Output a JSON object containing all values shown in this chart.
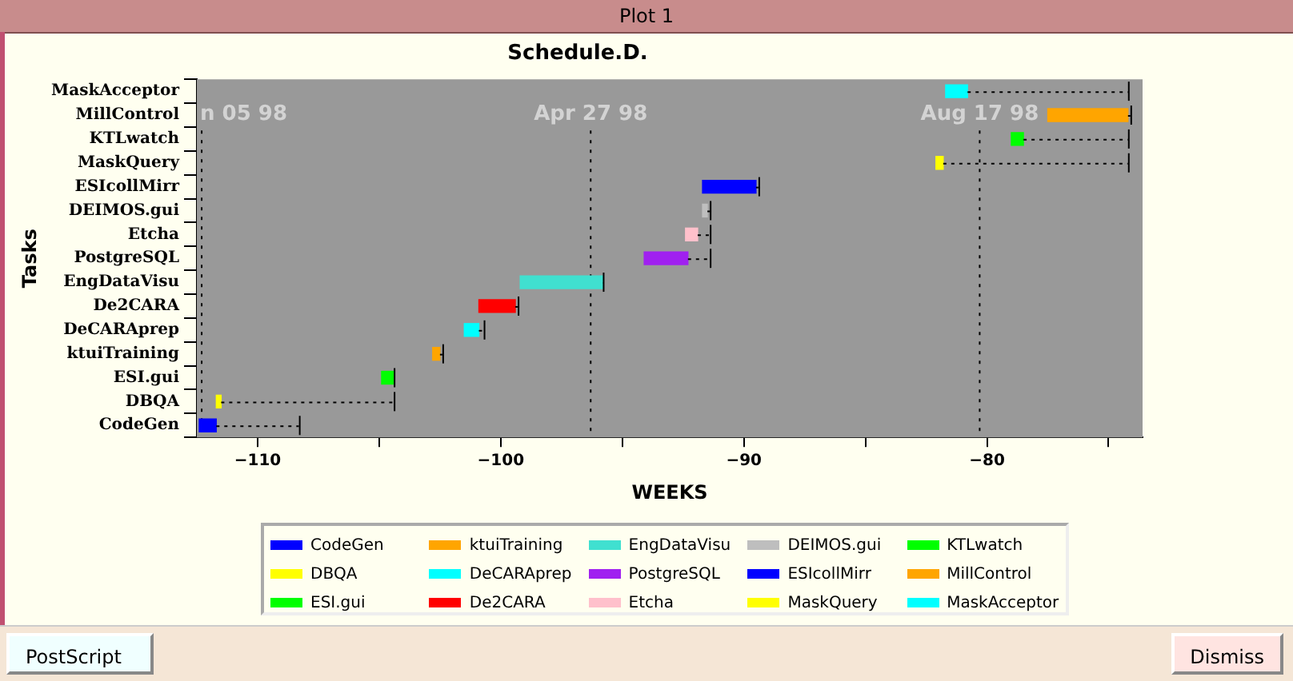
{
  "chart_data": {
    "type": "bar",
    "orientation": "horizontal",
    "title": "Schedule.D.",
    "xlabel": "WEEKS",
    "ylabel": "Tasks",
    "legend": "bottom",
    "grid": false,
    "categories": [
      "MaskAcceptor",
      "MillControl",
      "KTLwatch",
      "MaskQuery",
      "ESIcollMirr",
      "DEIMOS.gui",
      "Etcha",
      "PostgreSQL",
      "EngDataVisu",
      "De2CARA",
      "DeCARAprep",
      "ktuiTraining",
      "ESI.gui",
      "DBQA",
      "CodeGen"
    ],
    "xlim": [
      -112.5,
      -73.6
    ],
    "xticks": [
      -110,
      {
        "value": -105,
        "label": null
      },
      -100,
      {
        "value": -95,
        "label": null
      },
      -90,
      {
        "value": -85,
        "label": null
      },
      -80,
      {
        "value": -75,
        "label": null
      }
    ],
    "series": [
      {
        "name": "CodeGen",
        "color": "#0000ff",
        "values": [
          null,
          null,
          null,
          null,
          null,
          null,
          null,
          null,
          null,
          null,
          null,
          null,
          null,
          null,
          0.7
        ],
        "base": [
          null,
          null,
          null,
          null,
          null,
          null,
          null,
          null,
          null,
          null,
          null,
          null,
          null,
          null,
          -112.4
        ],
        "errors": [
          null,
          null,
          null,
          null,
          null,
          null,
          null,
          null,
          null,
          null,
          null,
          null,
          null,
          null,
          [
            -111.7,
            -108.3
          ]
        ]
      },
      {
        "name": "DBQA",
        "color": "#ffff00",
        "values": [
          null,
          null,
          null,
          null,
          null,
          null,
          null,
          null,
          null,
          null,
          null,
          null,
          null,
          0.2,
          null
        ],
        "base": [
          null,
          null,
          null,
          null,
          null,
          null,
          null,
          null,
          null,
          null,
          null,
          null,
          null,
          -111.7,
          null
        ],
        "errors": [
          null,
          null,
          null,
          null,
          null,
          null,
          null,
          null,
          null,
          null,
          null,
          null,
          null,
          [
            -111.5,
            -104.4
          ],
          null
        ]
      },
      {
        "name": "ESI.gui",
        "color": "#00ff00",
        "values": [
          null,
          null,
          null,
          null,
          null,
          null,
          null,
          null,
          null,
          null,
          null,
          null,
          0.5,
          null,
          null
        ],
        "base": [
          null,
          null,
          null,
          null,
          null,
          null,
          null,
          null,
          null,
          null,
          null,
          null,
          -104.9,
          null,
          null
        ],
        "errors": [
          null,
          null,
          null,
          null,
          null,
          null,
          null,
          null,
          null,
          null,
          null,
          null,
          [
            -104.4,
            -104.4
          ],
          null,
          null
        ]
      },
      {
        "name": "ktuiTraining",
        "color": "#ffa500",
        "values": [
          null,
          null,
          null,
          null,
          null,
          null,
          null,
          null,
          null,
          null,
          null,
          0.3,
          null,
          null,
          null
        ],
        "base": [
          null,
          null,
          null,
          null,
          null,
          null,
          null,
          null,
          null,
          null,
          null,
          -102.8,
          null,
          null,
          null
        ],
        "errors": [
          null,
          null,
          null,
          null,
          null,
          null,
          null,
          null,
          null,
          null,
          null,
          [
            -102.5,
            -102.4
          ],
          null,
          null,
          null
        ]
      },
      {
        "name": "DeCARAprep",
        "color": "#00ffff",
        "values": [
          null,
          null,
          null,
          null,
          null,
          null,
          null,
          null,
          null,
          null,
          0.6,
          null,
          null,
          null,
          null
        ],
        "base": [
          null,
          null,
          null,
          null,
          null,
          null,
          null,
          null,
          null,
          null,
          -101.5,
          null,
          null,
          null,
          null
        ],
        "errors": [
          null,
          null,
          null,
          null,
          null,
          null,
          null,
          null,
          null,
          null,
          [
            -100.9,
            -100.7
          ],
          null,
          null,
          null,
          null
        ]
      },
      {
        "name": "De2CARA",
        "color": "#ff0000",
        "values": [
          null,
          null,
          null,
          null,
          null,
          null,
          null,
          null,
          null,
          1.5,
          null,
          null,
          null,
          null,
          null
        ],
        "base": [
          null,
          null,
          null,
          null,
          null,
          null,
          null,
          null,
          null,
          -100.9,
          null,
          null,
          null,
          null,
          null
        ],
        "errors": [
          null,
          null,
          null,
          null,
          null,
          null,
          null,
          null,
          null,
          [
            -99.4,
            -99.3
          ],
          null,
          null,
          null,
          null,
          null
        ]
      },
      {
        "name": "EngDataVisu",
        "color": "#40e0d0",
        "values": [
          null,
          null,
          null,
          null,
          null,
          null,
          null,
          null,
          3.4,
          null,
          null,
          null,
          null,
          null,
          null
        ],
        "base": [
          null,
          null,
          null,
          null,
          null,
          null,
          null,
          null,
          -99.2,
          null,
          null,
          null,
          null,
          null,
          null
        ],
        "errors": [
          null,
          null,
          null,
          null,
          null,
          null,
          null,
          null,
          [
            -95.8,
            -95.8
          ],
          null,
          null,
          null,
          null,
          null,
          null
        ]
      },
      {
        "name": "PostgreSQL",
        "color": "#a020f0",
        "values": [
          null,
          null,
          null,
          null,
          null,
          null,
          null,
          1.8,
          null,
          null,
          null,
          null,
          null,
          null,
          null
        ],
        "base": [
          null,
          null,
          null,
          null,
          null,
          null,
          null,
          -94.1,
          null,
          null,
          null,
          null,
          null,
          null,
          null
        ],
        "errors": [
          null,
          null,
          null,
          null,
          null,
          null,
          null,
          [
            -92.3,
            -91.4
          ],
          null,
          null,
          null,
          null,
          null,
          null,
          null
        ]
      },
      {
        "name": "Etcha",
        "color": "#ffc0cb",
        "values": [
          null,
          null,
          null,
          null,
          null,
          null,
          0.5,
          null,
          null,
          null,
          null,
          null,
          null,
          null,
          null
        ],
        "base": [
          null,
          null,
          null,
          null,
          null,
          null,
          -92.4,
          null,
          null,
          null,
          null,
          null,
          null,
          null,
          null
        ],
        "errors": [
          null,
          null,
          null,
          null,
          null,
          null,
          [
            -91.9,
            -91.4
          ],
          null,
          null,
          null,
          null,
          null,
          null,
          null,
          null
        ]
      },
      {
        "name": "DEIMOS.gui",
        "color": "#bebebe",
        "values": [
          null,
          null,
          null,
          null,
          null,
          0.2,
          null,
          null,
          null,
          null,
          null,
          null,
          null,
          null,
          null
        ],
        "base": [
          null,
          null,
          null,
          null,
          null,
          -91.7,
          null,
          null,
          null,
          null,
          null,
          null,
          null,
          null,
          null
        ],
        "errors": [
          null,
          null,
          null,
          null,
          null,
          [
            -91.5,
            -91.4
          ],
          null,
          null,
          null,
          null,
          null,
          null,
          null,
          null,
          null
        ]
      },
      {
        "name": "ESIcollMirr",
        "color": "#0000ff",
        "values": [
          null,
          null,
          null,
          null,
          2.2,
          null,
          null,
          null,
          null,
          null,
          null,
          null,
          null,
          null,
          null
        ],
        "base": [
          null,
          null,
          null,
          null,
          -91.7,
          null,
          null,
          null,
          null,
          null,
          null,
          null,
          null,
          null,
          null
        ],
        "errors": [
          null,
          null,
          null,
          null,
          [
            -89.5,
            -89.4
          ],
          null,
          null,
          null,
          null,
          null,
          null,
          null,
          null,
          null,
          null
        ]
      },
      {
        "name": "MaskQuery",
        "color": "#ffff00",
        "values": [
          null,
          null,
          null,
          0.3,
          null,
          null,
          null,
          null,
          null,
          null,
          null,
          null,
          null,
          null,
          null
        ],
        "base": [
          null,
          null,
          null,
          -82.1,
          null,
          null,
          null,
          null,
          null,
          null,
          null,
          null,
          null,
          null,
          null
        ],
        "errors": [
          null,
          null,
          null,
          [
            -81.8,
            -74.2
          ],
          null,
          null,
          null,
          null,
          null,
          null,
          null,
          null,
          null,
          null,
          null
        ]
      },
      {
        "name": "KTLwatch",
        "color": "#00ff00",
        "values": [
          null,
          null,
          0.5,
          null,
          null,
          null,
          null,
          null,
          null,
          null,
          null,
          null,
          null,
          null,
          null
        ],
        "base": [
          null,
          null,
          -79.0,
          null,
          null,
          null,
          null,
          null,
          null,
          null,
          null,
          null,
          null,
          null,
          null
        ],
        "errors": [
          null,
          null,
          [
            -78.5,
            -74.2
          ],
          null,
          null,
          null,
          null,
          null,
          null,
          null,
          null,
          null,
          null,
          null,
          null
        ]
      },
      {
        "name": "MillControl",
        "color": "#ffa500",
        "values": [
          null,
          3.3,
          null,
          null,
          null,
          null,
          null,
          null,
          null,
          null,
          null,
          null,
          null,
          null,
          null
        ],
        "base": [
          null,
          -77.5,
          null,
          null,
          null,
          null,
          null,
          null,
          null,
          null,
          null,
          null,
          null,
          null,
          null
        ],
        "errors": [
          null,
          [
            -74.2,
            -74.1
          ],
          null,
          null,
          null,
          null,
          null,
          null,
          null,
          null,
          null,
          null,
          null,
          null,
          null
        ]
      },
      {
        "name": "MaskAcceptor",
        "color": "#00ffff",
        "values": [
          0.9,
          null,
          null,
          null,
          null,
          null,
          null,
          null,
          null,
          null,
          null,
          null,
          null,
          null,
          null
        ],
        "base": [
          -81.7,
          null,
          null,
          null,
          null,
          null,
          null,
          null,
          null,
          null,
          null,
          null,
          null,
          null,
          null
        ],
        "errors": [
          [
            -80.8,
            -74.2
          ],
          null,
          null,
          null,
          null,
          null,
          null,
          null,
          null,
          null,
          null,
          null,
          null,
          null,
          null
        ]
      }
    ],
    "ref_lines": [
      {
        "axis": "x",
        "value": -112.3,
        "label": "n 05 98",
        "line_style": "dotted"
      },
      {
        "axis": "x",
        "value": -96.3,
        "label": "Apr 27 98",
        "line_style": "dotted"
      },
      {
        "axis": "x",
        "value": -80.3,
        "label": "Aug 17 98",
        "line_style": "dotted"
      }
    ],
    "annotations": [
      "Plot 1",
      "PostScript",
      "Dismiss"
    ]
  }
}
